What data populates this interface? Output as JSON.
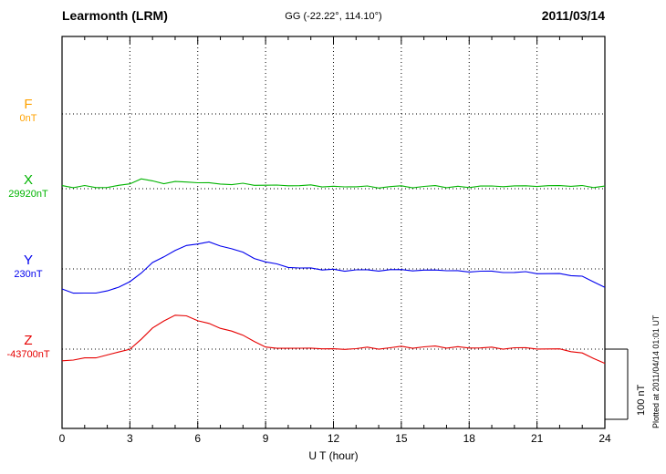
{
  "header": {
    "station": "Learmonth (LRM)",
    "coords": "GG (-22.22°, 114.10°)",
    "date": "2011/03/14"
  },
  "plot_note": "Plotted at 2011/04/14 01:01 UT",
  "scale_bar_label": "100 nT",
  "xaxis": {
    "label": "U T (hour)",
    "ticks": [
      0,
      3,
      6,
      9,
      12,
      15,
      18,
      21,
      24
    ],
    "min": 0,
    "max": 24,
    "minor_step": 1
  },
  "channels": [
    {
      "id": "F",
      "label": "F",
      "baseline_label": "0nT",
      "color": "#FFA200"
    },
    {
      "id": "X",
      "label": "X",
      "baseline_label": "29920nT",
      "color": "#00B400"
    },
    {
      "id": "Y",
      "label": "Y",
      "baseline_label": "230nT",
      "color": "#0000EE"
    },
    {
      "id": "Z",
      "label": "Z",
      "baseline_label": "-43700nT",
      "color": "#E60000"
    }
  ],
  "chart_data": {
    "type": "line",
    "title": "Learmonth (LRM) magnetogram 2011/03/14",
    "xlabel": "U T (hour)",
    "x_start": 0,
    "x_step": 0.5,
    "x_range": [
      0,
      24
    ],
    "grid": "dotted vertical lines every 3 hours; dotted horizontal line at each channel baseline",
    "scale_division_nT": 100,
    "series": [
      {
        "name": "F",
        "baseline_nT": 0,
        "color": "#FFA200",
        "values": []
      },
      {
        "name": "X",
        "baseline_nT": 29920,
        "color": "#00B400",
        "values": [
          3,
          2,
          4,
          3,
          2,
          4,
          8,
          14,
          10,
          8,
          10,
          8,
          9,
          8,
          8,
          6,
          7,
          6,
          5,
          4,
          5,
          4,
          4,
          3,
          3,
          4,
          3,
          3,
          2,
          3,
          3,
          2,
          3,
          3,
          2,
          3,
          3,
          4,
          3,
          4,
          4,
          3,
          4,
          4,
          3,
          4,
          4,
          3,
          4
        ]
      },
      {
        "name": "Y",
        "baseline_nT": 230,
        "color": "#0000EE",
        "values": [
          -30,
          -34,
          -35,
          -33,
          -31,
          -27,
          -17,
          -6,
          8,
          18,
          26,
          32,
          36,
          38,
          34,
          29,
          23,
          16,
          10,
          6,
          3,
          1,
          0,
          -1,
          -1,
          -2,
          -1,
          -2,
          -2,
          -1,
          -2,
          -2,
          -2,
          -3,
          -2,
          -3,
          -3,
          -3,
          -4,
          -4,
          -5,
          -5,
          -6,
          -7,
          -8,
          -9,
          -11,
          -17,
          -26
        ]
      },
      {
        "name": "Z",
        "baseline_nT": -43700,
        "color": "#E60000",
        "values": [
          -18,
          -15,
          -13,
          -11,
          -8,
          -5,
          1,
          14,
          29,
          41,
          48,
          46,
          41,
          36,
          31,
          26,
          19,
          12,
          3,
          0,
          2,
          1,
          0,
          1,
          0,
          1,
          1,
          2,
          1,
          2,
          3,
          2,
          3,
          3,
          2,
          3,
          3,
          2,
          2,
          1,
          2,
          1,
          1,
          0,
          -1,
          -3,
          -6,
          -12,
          -20
        ]
      }
    ]
  }
}
